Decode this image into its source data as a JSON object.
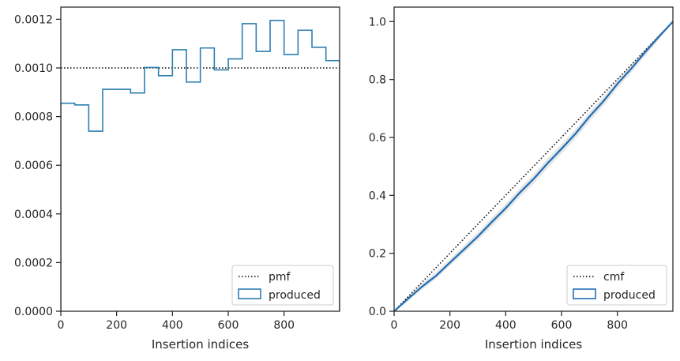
{
  "chart_data": [
    {
      "type": "line",
      "step": true,
      "xlabel": "Insertion indices",
      "ylabel": "",
      "xlim": [
        0,
        999
      ],
      "ylim": [
        0,
        0.00125
      ],
      "xticks": [
        0,
        200,
        400,
        600,
        800
      ],
      "xtick_labels": [
        "0",
        "200",
        "400",
        "600",
        "800"
      ],
      "yticks": [
        0,
        0.0002,
        0.0004,
        0.0006,
        0.0008,
        0.001,
        0.0012
      ],
      "ytick_labels": [
        "0.0000",
        "0.0002",
        "0.0004",
        "0.0006",
        "0.0008",
        "0.0010",
        "0.0012"
      ],
      "grid": false,
      "legend": "lower-right",
      "bin_edges": [
        0,
        50,
        100,
        150,
        200,
        250,
        300,
        350,
        400,
        450,
        500,
        550,
        600,
        650,
        700,
        750,
        800,
        850,
        900,
        950,
        999
      ],
      "reference": {
        "name": "pmf",
        "value": 0.001,
        "style": "dotted",
        "color": "#000000"
      },
      "series": [
        {
          "name": "produced",
          "color": "#2b7fb0",
          "values": [
            0.000855,
            0.000848,
            0.00074,
            0.000912,
            0.000912,
            0.000897,
            0.001002,
            0.000968,
            0.001075,
            0.000942,
            0.001082,
            0.000992,
            0.001037,
            0.001182,
            0.001068,
            0.001195,
            0.001055,
            0.001155,
            0.001085,
            0.00103
          ]
        }
      ]
    },
    {
      "type": "line",
      "xlabel": "Insertion indices",
      "ylabel": "",
      "xlim": [
        0,
        999
      ],
      "ylim": [
        0,
        1.05
      ],
      "xticks": [
        0,
        200,
        400,
        600,
        800
      ],
      "xtick_labels": [
        "0",
        "200",
        "400",
        "600",
        "800"
      ],
      "yticks": [
        0,
        0.2,
        0.4,
        0.6,
        0.8,
        1.0
      ],
      "ytick_labels": [
        "0.0",
        "0.2",
        "0.4",
        "0.6",
        "0.8",
        "1.0"
      ],
      "grid": false,
      "legend": "lower-right",
      "reference": {
        "name": "cmf",
        "x": [
          0,
          999
        ],
        "y": [
          0,
          1.0
        ],
        "style": "dotted",
        "color": "#000000"
      },
      "series": [
        {
          "name": "produced",
          "color": "#1f6eb4",
          "x": [
            0,
            50,
            100,
            150,
            200,
            250,
            300,
            350,
            400,
            450,
            500,
            550,
            600,
            650,
            700,
            750,
            800,
            850,
            900,
            950,
            999
          ],
          "y": [
            0,
            0.043,
            0.085,
            0.122,
            0.168,
            0.213,
            0.258,
            0.308,
            0.356,
            0.409,
            0.457,
            0.511,
            0.561,
            0.613,
            0.672,
            0.725,
            0.785,
            0.838,
            0.895,
            0.949,
            1.0
          ]
        }
      ],
      "band": {
        "color": "#c8c8c8",
        "lower": [
          0,
          0.035,
          0.075,
          0.112,
          0.157,
          0.2,
          0.245,
          0.293,
          0.341,
          0.393,
          0.44,
          0.494,
          0.544,
          0.596,
          0.655,
          0.709,
          0.77,
          0.824,
          0.882,
          0.94,
          1.0
        ],
        "upper": [
          0,
          0.052,
          0.097,
          0.134,
          0.18,
          0.226,
          0.272,
          0.322,
          0.371,
          0.424,
          0.473,
          0.527,
          0.577,
          0.629,
          0.687,
          0.74,
          0.799,
          0.851,
          0.906,
          0.957,
          1.0
        ]
      }
    }
  ]
}
